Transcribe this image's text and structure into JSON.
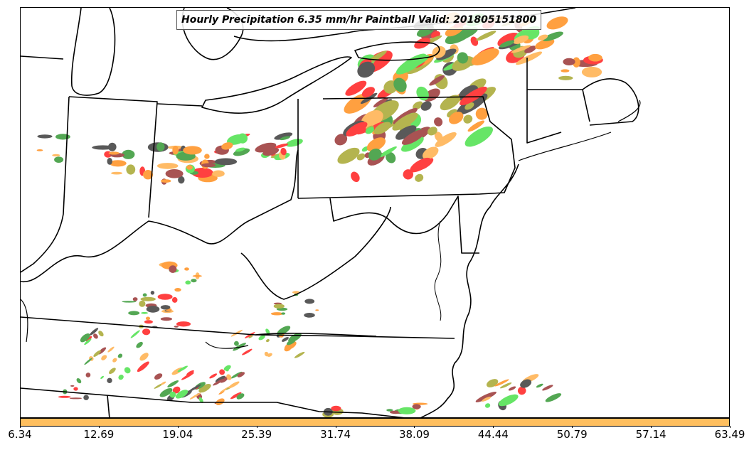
{
  "title": "Hourly Precipitation 6.35 mm/hr Paintball Valid: 201805151800",
  "colors": {
    "colorbar": "#ffbf5f",
    "paintball": [
      "#ff0000",
      "#ff8000",
      "#ffa533",
      "#9b9b14",
      "#1a8a1a",
      "#33dd33",
      "#222222",
      "#8b1a1a"
    ]
  },
  "colorbar": {
    "ticks": [
      "6.34",
      "12.69",
      "19.04",
      "25.39",
      "31.74",
      "38.09",
      "44.44",
      "50.79",
      "57.14",
      "63.49"
    ]
  }
}
